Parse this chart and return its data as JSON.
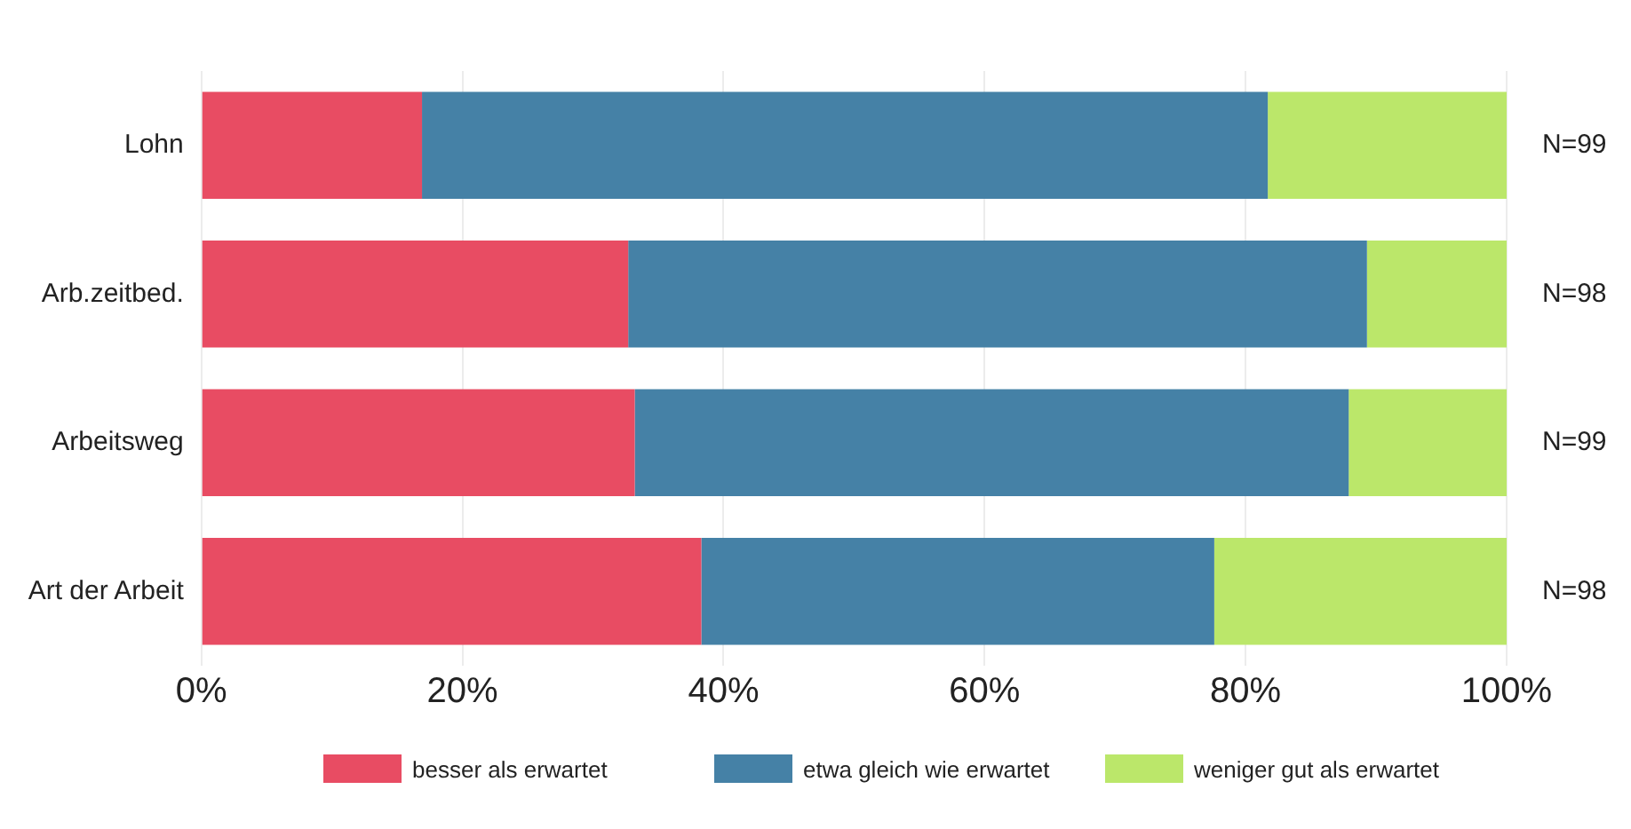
{
  "chart_data": {
    "type": "bar",
    "orientation": "horizontal",
    "stacked": true,
    "categories": [
      "Lohn",
      "Arb.zeitbed.",
      "Arbeitsweg",
      "Art der Arbeit"
    ],
    "series": [
      {
        "name": "besser als erwartet",
        "color": "#e84c63",
        "values": [
          16.9,
          32.7,
          33.2,
          38.3
        ]
      },
      {
        "name": "etwa gleich wie erwartet",
        "color": "#4581a6",
        "values": [
          64.8,
          56.6,
          54.7,
          39.3
        ]
      },
      {
        "name": "weniger gut als erwartet",
        "color": "#bbe76a",
        "values": [
          18.3,
          10.7,
          12.1,
          22.4
        ]
      }
    ],
    "xlim": [
      0,
      100
    ],
    "xticks": [
      {
        "value": 0,
        "label": "0%"
      },
      {
        "value": 20,
        "label": "20%"
      },
      {
        "value": 40,
        "label": "40%"
      },
      {
        "value": 60,
        "label": "60%"
      },
      {
        "value": 80,
        "label": "80%"
      },
      {
        "value": 100,
        "label": "100%"
      }
    ],
    "totals": [
      "N=99",
      "N=98",
      "N=99",
      "N=98"
    ],
    "grid": "x",
    "legend": "bottom"
  }
}
